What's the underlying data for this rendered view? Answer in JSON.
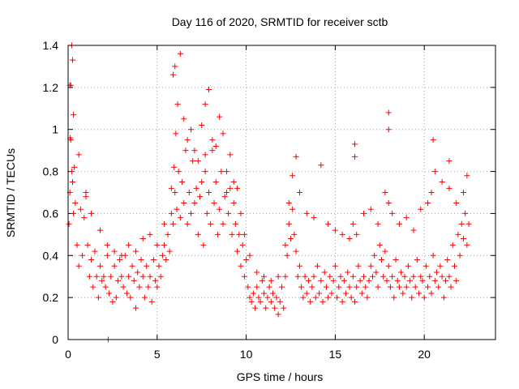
{
  "chart_data": {
    "type": "scatter",
    "title": "Day 116 of 2020, SRMTID for receiver sctb",
    "xlabel": "GPS time / hours",
    "ylabel": "SRMTID / TECUs",
    "xlim": [
      0,
      24
    ],
    "ylim": [
      0,
      1.4
    ],
    "xticks": [
      0,
      5,
      10,
      15,
      20
    ],
    "xtick_labels": [
      "0",
      "5",
      "10",
      "15",
      "20"
    ],
    "yticks": [
      0,
      0.2,
      0.4,
      0.6,
      0.8,
      1,
      1.2,
      1.4
    ],
    "ytick_labels": [
      "0",
      "0.2",
      "0.4",
      "0.6",
      "0.8",
      "1",
      "1.2",
      "1.4"
    ],
    "grid": true,
    "marker": "+",
    "color": "#ff0000",
    "series": [
      {
        "name": "SRMTID",
        "x": [
          0.05,
          0.1,
          0.15,
          0.2,
          0.25,
          0.3,
          0.35,
          0.4,
          0.5,
          0.6,
          0.7,
          0.8,
          0.9,
          1.0,
          1.1,
          1.2,
          1.3,
          1.4,
          1.5,
          1.6,
          1.7,
          1.8,
          1.9,
          2.0,
          2.1,
          2.2,
          2.3,
          2.4,
          2.5,
          2.6,
          2.7,
          2.8,
          2.9,
          3.0,
          3.1,
          3.2,
          3.3,
          3.4,
          3.5,
          3.6,
          3.7,
          3.8,
          3.9,
          4.0,
          4.1,
          4.2,
          4.3,
          4.4,
          4.5,
          4.6,
          4.7,
          4.8,
          4.9,
          5.0,
          5.1,
          5.2,
          5.3,
          5.4,
          5.5,
          5.6,
          5.7,
          5.8,
          5.9,
          6.0,
          6.1,
          6.2,
          6.3,
          6.4,
          6.5,
          6.6,
          6.7,
          6.8,
          6.9,
          7.0,
          7.1,
          7.2,
          7.3,
          7.4,
          7.5,
          7.6,
          7.7,
          7.8,
          7.9,
          8.0,
          8.1,
          8.2,
          8.3,
          8.4,
          8.5,
          8.6,
          8.7,
          8.8,
          8.9,
          9.0,
          9.1,
          9.2,
          9.3,
          9.4,
          9.5,
          9.6,
          9.7,
          9.8,
          9.9,
          10.0,
          10.1,
          10.2,
          10.3,
          10.4,
          10.5,
          10.6,
          10.7,
          10.8,
          10.9,
          11.0,
          11.1,
          11.2,
          11.3,
          11.4,
          11.5,
          11.6,
          11.7,
          11.8,
          11.9,
          12.0,
          12.1,
          12.2,
          12.3,
          12.4,
          12.5,
          12.6,
          12.7,
          12.8,
          12.9,
          13.0,
          13.1,
          13.2,
          13.3,
          13.4,
          13.5,
          13.6,
          13.7,
          13.8,
          13.9,
          14.0,
          14.1,
          14.2,
          14.3,
          14.4,
          14.5,
          14.6,
          14.7,
          14.8,
          14.9,
          15.0,
          15.1,
          15.2,
          15.3,
          15.4,
          15.5,
          15.6,
          15.7,
          15.8,
          15.9,
          16.0,
          16.1,
          16.2,
          16.3,
          16.4,
          16.5,
          16.6,
          16.7,
          16.8,
          16.9,
          17.0,
          17.1,
          17.2,
          17.3,
          17.4,
          17.5,
          17.6,
          17.7,
          17.8,
          17.9,
          18.0,
          18.1,
          18.2,
          18.3,
          18.4,
          18.5,
          18.6,
          18.7,
          18.8,
          18.9,
          19.0,
          19.1,
          19.2,
          19.3,
          19.4,
          19.5,
          19.6,
          19.7,
          19.8,
          19.9,
          20.0,
          20.1,
          20.2,
          20.3,
          20.4,
          20.5,
          20.6,
          20.7,
          20.8,
          20.9,
          21.0,
          21.1,
          21.2,
          21.3,
          21.4,
          21.5,
          21.6,
          21.7,
          21.8,
          21.9,
          22.0,
          22.1,
          22.2,
          22.3,
          22.4,
          22.5,
          0.15,
          0.2,
          0.25,
          0.3,
          0.6,
          1.0,
          1.3,
          1.8,
          2.2,
          2.6,
          3.0,
          3.4,
          3.8,
          4.2,
          4.6,
          5.0,
          5.4,
          5.8,
          5.95,
          6.05,
          6.15,
          6.3,
          6.5,
          6.7,
          6.9,
          7.1,
          7.3,
          7.5,
          7.7,
          7.9,
          8.1,
          8.3,
          8.5,
          8.7,
          8.9,
          9.1,
          9.3,
          9.5,
          9.7,
          9.9,
          10.2,
          10.6,
          11.0,
          11.4,
          11.8,
          12.2,
          12.4,
          12.6,
          12.8,
          13.0,
          13.4,
          13.8,
          14.2,
          14.6,
          15.0,
          15.4,
          15.8,
          16.0,
          16.2,
          16.6,
          17.0,
          17.4,
          17.8,
          18.0,
          18.2,
          18.6,
          19.0,
          19.4,
          19.8,
          20.2,
          20.4,
          20.6,
          21.0,
          21.4,
          21.8,
          22.2,
          22.4,
          2.25,
          0.1,
          0.12,
          5.9,
          6.0,
          7.7,
          7.9,
          18.0,
          18.0,
          16.1,
          16.1,
          20.5,
          21.4
        ],
        "y": [
          0.55,
          0.7,
          0.95,
          0.8,
          0.75,
          0.6,
          0.82,
          0.65,
          0.45,
          0.35,
          0.62,
          0.4,
          0.58,
          0.7,
          0.45,
          0.3,
          0.38,
          0.25,
          0.42,
          0.3,
          0.2,
          0.35,
          0.28,
          0.3,
          0.25,
          0.4,
          0.22,
          0.3,
          0.18,
          0.35,
          0.2,
          0.28,
          0.38,
          0.3,
          0.25,
          0.4,
          0.22,
          0.3,
          0.2,
          0.35,
          0.28,
          0.15,
          0.32,
          0.25,
          0.38,
          0.3,
          0.2,
          0.35,
          0.25,
          0.3,
          0.18,
          0.38,
          0.28,
          0.25,
          0.35,
          0.3,
          0.4,
          0.45,
          0.38,
          0.5,
          0.42,
          0.6,
          0.55,
          0.7,
          0.62,
          0.8,
          0.58,
          0.75,
          0.65,
          0.9,
          0.55,
          0.7,
          0.6,
          0.85,
          0.65,
          0.72,
          0.5,
          0.68,
          0.75,
          0.45,
          0.8,
          0.6,
          0.7,
          0.55,
          0.9,
          0.65,
          0.75,
          0.5,
          0.62,
          0.8,
          0.55,
          0.68,
          0.7,
          0.6,
          0.72,
          0.5,
          0.65,
          0.55,
          0.42,
          0.5,
          0.35,
          0.45,
          0.3,
          0.38,
          0.25,
          0.2,
          0.18,
          0.22,
          0.15,
          0.25,
          0.2,
          0.18,
          0.28,
          0.22,
          0.15,
          0.2,
          0.25,
          0.18,
          0.22,
          0.15,
          0.2,
          0.12,
          0.18,
          0.25,
          0.15,
          0.3,
          0.4,
          0.55,
          0.48,
          0.62,
          0.5,
          0.42,
          0.3,
          0.35,
          0.25,
          0.2,
          0.3,
          0.22,
          0.28,
          0.18,
          0.25,
          0.3,
          0.2,
          0.35,
          0.22,
          0.28,
          0.18,
          0.32,
          0.25,
          0.2,
          0.3,
          0.22,
          0.28,
          0.35,
          0.2,
          0.25,
          0.3,
          0.18,
          0.28,
          0.22,
          0.32,
          0.25,
          0.2,
          0.3,
          0.18,
          0.25,
          0.35,
          0.28,
          0.22,
          0.3,
          0.25,
          0.2,
          0.28,
          0.35,
          0.3,
          0.4,
          0.32,
          0.25,
          0.45,
          0.38,
          0.3,
          0.42,
          0.28,
          0.35,
          0.25,
          0.3,
          0.2,
          0.38,
          0.28,
          0.25,
          0.32,
          0.22,
          0.3,
          0.25,
          0.35,
          0.28,
          0.2,
          0.3,
          0.25,
          0.38,
          0.22,
          0.3,
          0.28,
          0.2,
          0.35,
          0.25,
          0.3,
          0.22,
          0.4,
          0.28,
          0.32,
          0.25,
          0.35,
          0.3,
          0.2,
          0.28,
          0.38,
          0.3,
          0.25,
          0.45,
          0.35,
          0.28,
          0.5,
          0.4,
          0.55,
          0.48,
          0.6,
          0.45,
          0.55,
          1.21,
          1.4,
          1.33,
          1.07,
          0.88,
          0.68,
          0.6,
          0.52,
          0.45,
          0.42,
          0.4,
          0.45,
          0.42,
          0.48,
          0.5,
          0.45,
          0.55,
          0.72,
          0.82,
          0.98,
          1.12,
          1.36,
          1.05,
          0.95,
          1.0,
          0.9,
          0.85,
          1.02,
          0.88,
          1.19,
          0.95,
          0.92,
          1.06,
          0.98,
          0.8,
          0.88,
          0.75,
          0.72,
          0.6,
          0.5,
          0.4,
          0.32,
          0.3,
          0.28,
          0.3,
          0.45,
          0.65,
          0.78,
          0.87,
          0.7,
          0.6,
          0.58,
          0.83,
          0.55,
          0.52,
          0.5,
          0.48,
          0.55,
          0.5,
          0.6,
          0.62,
          0.55,
          0.7,
          0.65,
          0.6,
          0.55,
          0.58,
          0.52,
          0.62,
          0.65,
          0.7,
          0.8,
          0.75,
          0.72,
          0.65,
          0.7,
          0.78,
          0.0,
          1.21,
          0.96,
          1.26,
          1.3,
          1.12,
          1.19,
          1.08,
          1.0,
          0.87,
          0.93,
          0.95,
          0.85
        ]
      }
    ]
  }
}
